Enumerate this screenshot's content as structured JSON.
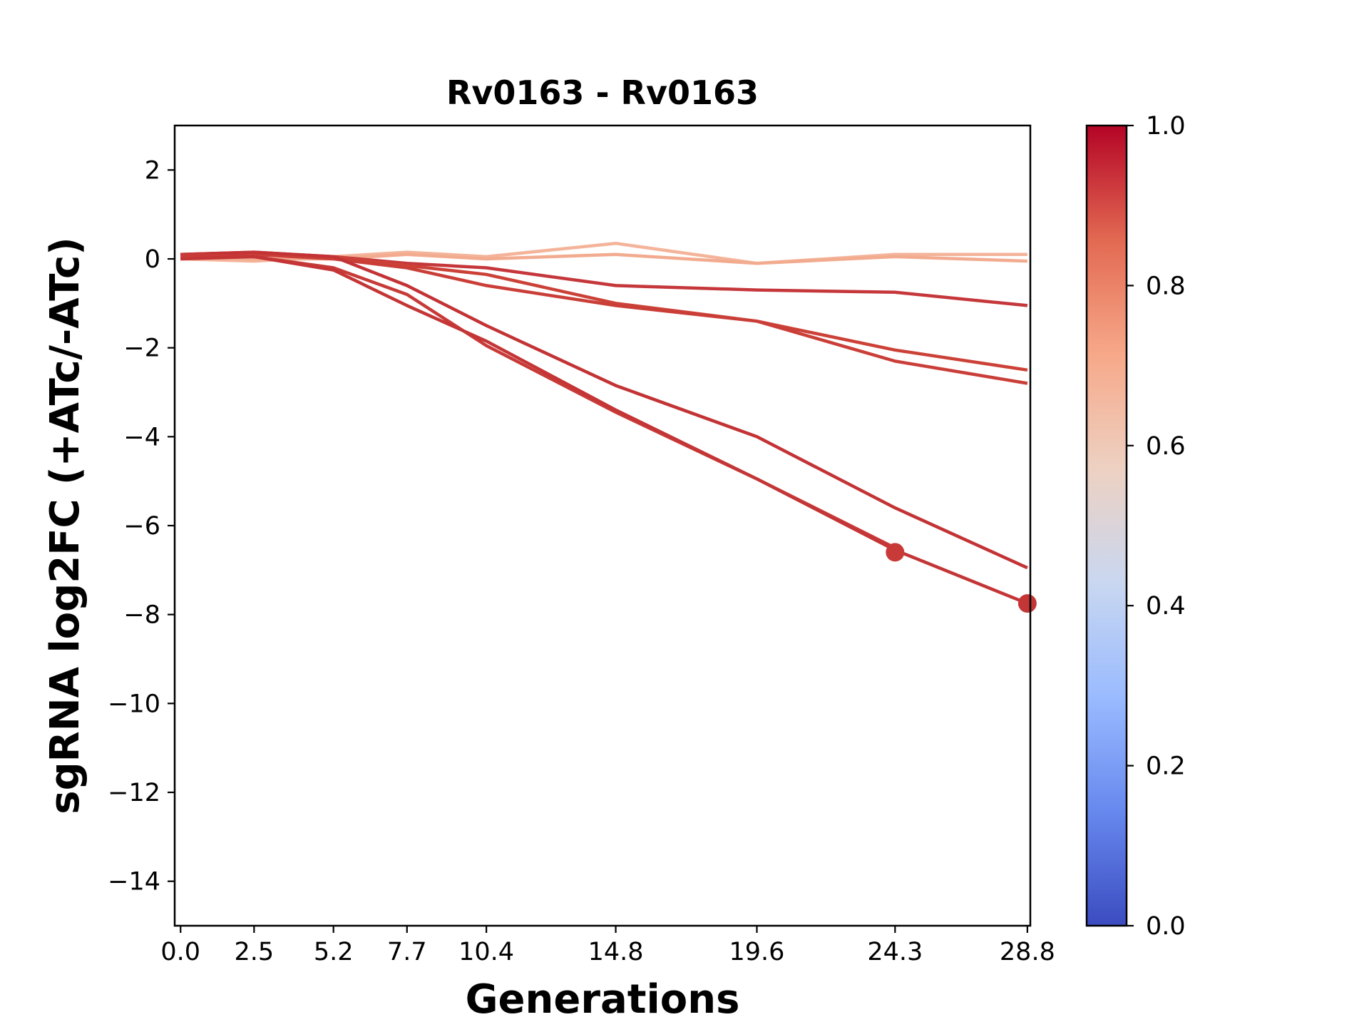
{
  "chart_data": {
    "type": "line",
    "title": "Rv0163 - Rv0163",
    "xlabel": "Generations",
    "ylabel": "sgRNA log2FC (+ATc/-ATc)",
    "x_ticks": [
      0.0,
      2.5,
      5.2,
      7.7,
      10.4,
      14.8,
      19.6,
      24.3,
      28.8
    ],
    "x_tick_labels": [
      "0.0",
      "2.5",
      "5.2",
      "7.7",
      "10.4",
      "14.8",
      "19.6",
      "24.3",
      "28.8"
    ],
    "xlim": [
      -0.2,
      28.9
    ],
    "ylim": [
      -15,
      3
    ],
    "y_ticks": [
      2,
      0,
      -2,
      -4,
      -6,
      -8,
      -10,
      -12,
      -14
    ],
    "y_tick_labels": [
      "2",
      "0",
      "−2",
      "−4",
      "−6",
      "−8",
      "−10",
      "−12",
      "−14"
    ],
    "grid": false,
    "colorbar": {
      "colormap": "coolwarm",
      "range": [
        0.0,
        1.0
      ],
      "ticks": [
        0.0,
        0.2,
        0.4,
        0.6,
        0.8,
        1.0
      ],
      "tick_labels": [
        "0.0",
        "0.2",
        "0.4",
        "0.6",
        "0.8",
        "1.0"
      ],
      "stops": [
        "#3b4cc0",
        "#6788ee",
        "#9abbff",
        "#c9d7f0",
        "#edd1c2",
        "#f7a889",
        "#e26952",
        "#b40426"
      ]
    },
    "series": [
      {
        "color": "#f4b49a",
        "x": [
          0.0,
          2.5,
          5.2,
          7.7,
          10.4,
          14.8,
          19.6,
          24.3,
          28.8
        ],
        "y": [
          0.0,
          -0.05,
          0.05,
          0.15,
          0.05,
          0.35,
          -0.1,
          0.1,
          0.1
        ]
      },
      {
        "color": "#f2ab8f",
        "x": [
          0.0,
          2.5,
          5.2,
          7.7,
          10.4,
          14.8,
          19.6,
          24.3,
          28.8
        ],
        "y": [
          0.05,
          0.0,
          0.0,
          0.1,
          0.0,
          0.1,
          -0.1,
          0.05,
          -0.05
        ]
      },
      {
        "color": "#c5373a",
        "x": [
          0.0,
          2.5,
          5.2,
          7.7,
          10.4,
          14.8,
          19.6,
          24.3,
          28.8
        ],
        "y": [
          0.05,
          0.1,
          0.05,
          -0.1,
          -0.2,
          -0.6,
          -0.7,
          -0.75,
          -1.05
        ]
      },
      {
        "color": "#cc4137",
        "x": [
          0.0,
          2.5,
          5.2,
          7.7,
          10.4,
          14.8,
          19.6,
          24.3,
          28.8
        ],
        "y": [
          0.1,
          0.15,
          0.05,
          -0.15,
          -0.35,
          -1.0,
          -1.4,
          -2.05,
          -2.5
        ]
      },
      {
        "color": "#ca3e38",
        "x": [
          0.0,
          2.5,
          5.2,
          7.7,
          10.4,
          14.8,
          19.6,
          24.3,
          28.8
        ],
        "y": [
          0.05,
          0.1,
          0.0,
          -0.2,
          -0.6,
          -1.05,
          -1.4,
          -2.3,
          -2.8
        ]
      },
      {
        "color": "#c33335",
        "x": [
          0.0,
          2.5,
          5.2,
          7.7,
          10.4,
          14.8,
          19.6,
          24.3,
          28.8
        ],
        "y": [
          0.1,
          0.15,
          0.05,
          -0.6,
          -1.5,
          -2.85,
          -4.0,
          -5.6,
          -6.95
        ]
      },
      {
        "color": "#c83a38",
        "x": [
          0.0,
          2.5,
          5.2,
          7.7,
          10.4,
          14.8,
          19.6,
          24.3
        ],
        "y": [
          0.1,
          0.05,
          -0.2,
          -0.8,
          -1.95,
          -3.45,
          -4.95,
          -6.5
        ]
      },
      {
        "color": "#c43536",
        "x": [
          0.0,
          2.5,
          5.2,
          7.7,
          10.4,
          14.8,
          19.6,
          24.3,
          28.8
        ],
        "y": [
          0.0,
          0.05,
          -0.25,
          -1.05,
          -1.85,
          -3.4,
          -4.95,
          -6.55,
          -7.75
        ]
      }
    ],
    "markers": [
      {
        "x": 24.3,
        "y": -6.6,
        "color": "#c83a38"
      },
      {
        "x": 28.8,
        "y": -7.75,
        "color": "#c43536"
      }
    ]
  }
}
